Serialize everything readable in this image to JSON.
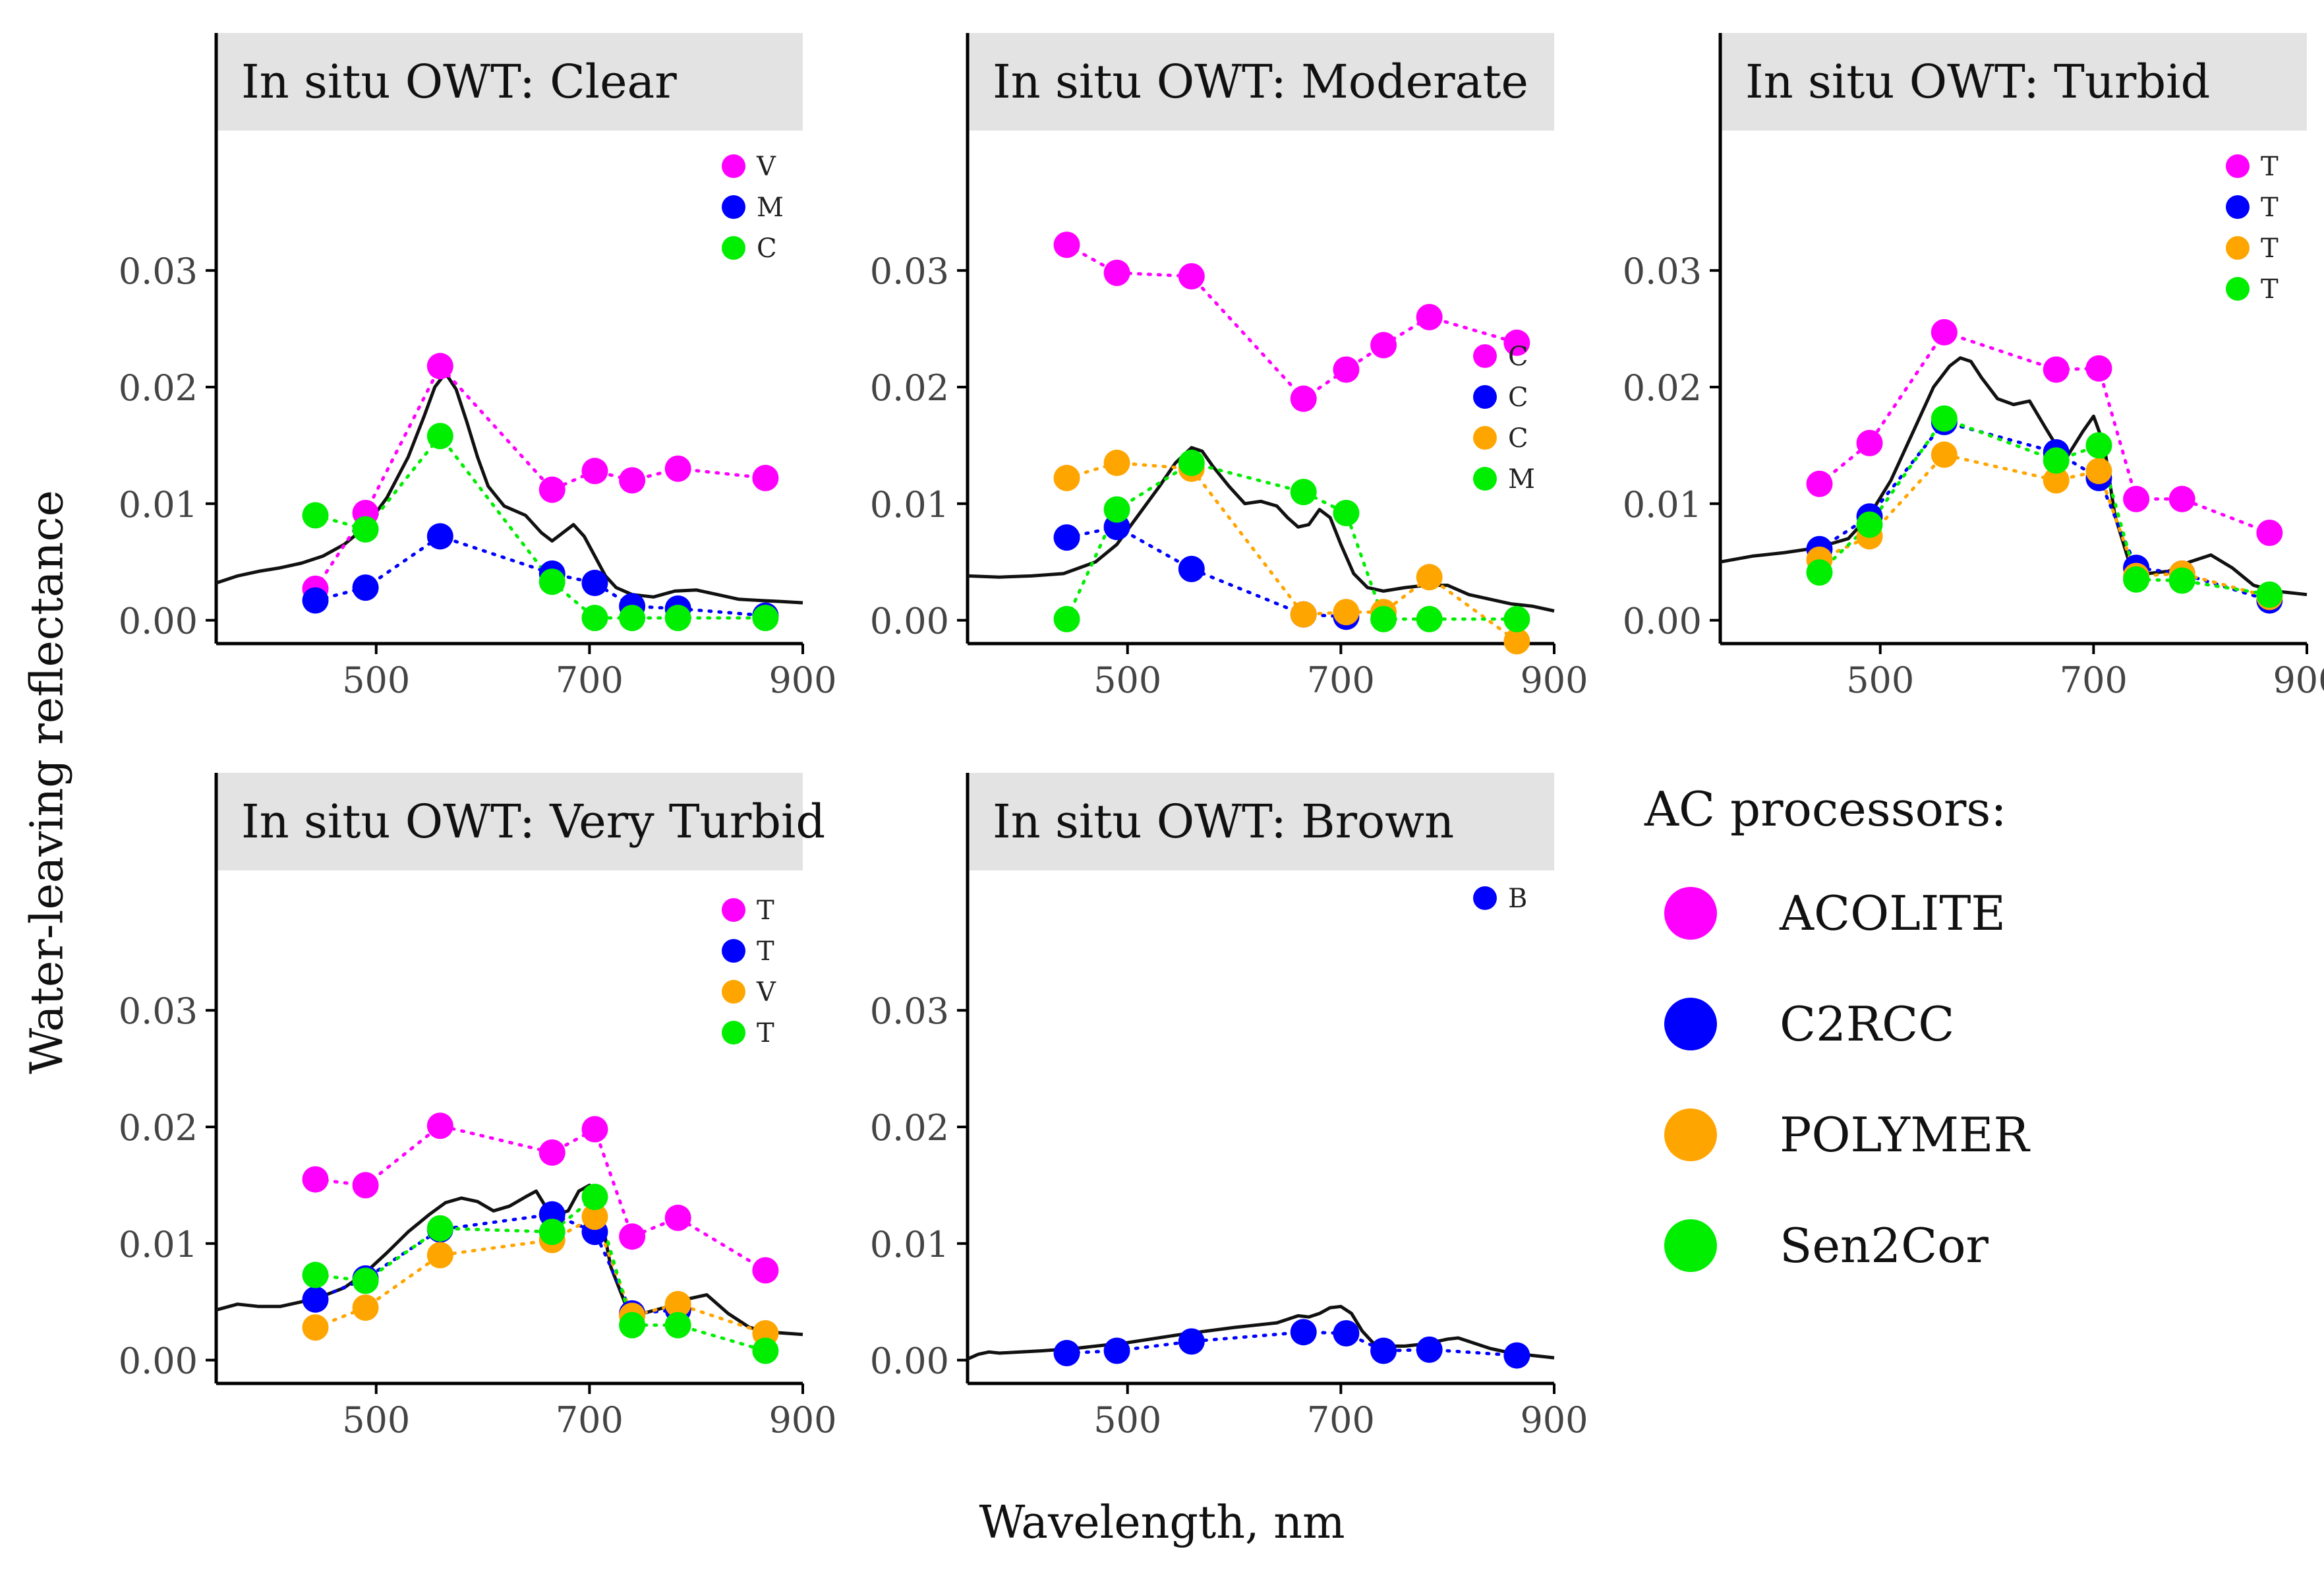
{
  "figure": {
    "x_axis_title": "Wavelength, nm",
    "y_axis_title": "Water-leaving reflectance",
    "legend_title": "AC processors:"
  },
  "colors": {
    "ACOLITE": "#ff00ff",
    "C2RCC": "#0000ff",
    "POLYMER": "#ffa500",
    "Sen2Cor": "#00ee00",
    "in_situ": "#111111",
    "strip": "#e3e3e3"
  },
  "legend": [
    {
      "label": "ACOLITE",
      "color": "#ff00ff"
    },
    {
      "label": "C2RCC",
      "color": "#0000ff"
    },
    {
      "label": "POLYMER",
      "color": "#ffa500"
    },
    {
      "label": "Sen2Cor",
      "color": "#00ee00"
    }
  ],
  "chart_data": {
    "type": "scatter",
    "description_axis": "shared",
    "xlim": [
      350,
      900
    ],
    "ylim": [
      -0.002,
      0.042
    ],
    "x_ticks": [
      500,
      700,
      900
    ],
    "y_ticks": [
      0.0,
      0.01,
      0.02,
      0.03
    ],
    "y_tick_labels": [
      "0.00",
      "0.01",
      "0.02",
      "0.03"
    ],
    "wavelengths": [
      443,
      490,
      560,
      665,
      705,
      740,
      783,
      865
    ],
    "panels": [
      {
        "title": "In situ OWT: Clear",
        "in_situ": {
          "x": [
            350,
            370,
            390,
            410,
            430,
            450,
            470,
            490,
            510,
            530,
            545,
            555,
            565,
            575,
            585,
            595,
            605,
            620,
            640,
            655,
            665,
            675,
            685,
            695,
            705,
            715,
            725,
            740,
            760,
            780,
            800,
            820,
            840,
            860,
            880,
            900
          ],
          "y": [
            0.0032,
            0.0038,
            0.0042,
            0.0045,
            0.0049,
            0.0055,
            0.0065,
            0.008,
            0.0105,
            0.014,
            0.0175,
            0.02,
            0.0212,
            0.0198,
            0.017,
            0.014,
            0.0115,
            0.0098,
            0.009,
            0.0075,
            0.0068,
            0.0075,
            0.0082,
            0.0072,
            0.0055,
            0.0038,
            0.0028,
            0.0022,
            0.002,
            0.0025,
            0.0026,
            0.0022,
            0.0018,
            0.0017,
            0.0016,
            0.0015
          ]
        },
        "series": [
          {
            "name": "ACOLITE",
            "values": [
              0.0027,
              0.0092,
              0.0218,
              0.0112,
              0.0128,
              0.012,
              0.013,
              0.0122
            ]
          },
          {
            "name": "C2RCC",
            "values": [
              0.0017,
              0.0028,
              0.0072,
              0.004,
              0.0032,
              0.0012,
              0.001,
              0.0004
            ]
          },
          {
            "name": "Sen2Cor",
            "values": [
              0.009,
              0.0078,
              0.0158,
              0.0033,
              0.0002,
              0.0002,
              0.0002,
              0.0002
            ]
          }
        ],
        "point_labels": [
          {
            "series": "ACOLITE",
            "text": "V"
          },
          {
            "series": "C2RCC",
            "text": "M"
          },
          {
            "series": "Sen2Cor",
            "text": "C"
          }
        ]
      },
      {
        "title": "In situ OWT: Moderate",
        "in_situ": {
          "x": [
            350,
            380,
            410,
            440,
            470,
            490,
            510,
            530,
            545,
            560,
            570,
            580,
            595,
            610,
            625,
            640,
            650,
            660,
            670,
            680,
            690,
            700,
            712,
            725,
            740,
            760,
            780,
            800,
            820,
            840,
            860,
            880,
            900
          ],
          "y": [
            0.0038,
            0.0037,
            0.0038,
            0.004,
            0.005,
            0.0065,
            0.009,
            0.0115,
            0.0135,
            0.0148,
            0.0145,
            0.0132,
            0.0115,
            0.01,
            0.0102,
            0.0098,
            0.0088,
            0.008,
            0.0082,
            0.0095,
            0.0088,
            0.0065,
            0.004,
            0.0028,
            0.0025,
            0.0028,
            0.003,
            0.003,
            0.0022,
            0.0018,
            0.0014,
            0.0012,
            0.0008
          ]
        },
        "series": [
          {
            "name": "ACOLITE",
            "values": [
              0.0322,
              0.0298,
              0.0295,
              0.019,
              0.0215,
              0.0236,
              0.026,
              0.0238
            ]
          },
          {
            "name": "C2RCC",
            "values": [
              0.0071,
              0.008,
              0.0044,
              0.0005,
              0.0003,
              null,
              null,
              null
            ]
          },
          {
            "name": "POLYMER",
            "values": [
              0.0122,
              0.0135,
              0.013,
              0.0005,
              0.0007,
              0.0007,
              0.0037,
              -0.0018
            ]
          },
          {
            "name": "Sen2Cor",
            "values": [
              0.0001,
              0.0095,
              0.0135,
              0.011,
              0.0092,
              0.0001,
              0.0001,
              0.0001
            ]
          }
        ],
        "point_labels": [
          {
            "series": "ACOLITE",
            "text": "C"
          },
          {
            "series": "C2RCC",
            "text": "C"
          },
          {
            "series": "POLYMER",
            "text": "C"
          },
          {
            "series": "Sen2Cor",
            "text": "M"
          }
        ]
      },
      {
        "title": "In situ OWT: Turbid",
        "in_situ": {
          "x": [
            350,
            380,
            410,
            440,
            470,
            490,
            510,
            530,
            550,
            565,
            575,
            585,
            595,
            610,
            625,
            640,
            655,
            665,
            675,
            690,
            700,
            710,
            720,
            735,
            750,
            770,
            790,
            810,
            830,
            850,
            870,
            900
          ],
          "y": [
            0.005,
            0.0055,
            0.0058,
            0.0062,
            0.007,
            0.009,
            0.012,
            0.016,
            0.02,
            0.0218,
            0.0225,
            0.0222,
            0.0208,
            0.019,
            0.0185,
            0.0188,
            0.0165,
            0.015,
            0.014,
            0.0162,
            0.0175,
            0.015,
            0.009,
            0.0045,
            0.004,
            0.0042,
            0.005,
            0.0056,
            0.0045,
            0.003,
            0.0025,
            0.0022
          ]
        },
        "series": [
          {
            "name": "ACOLITE",
            "values": [
              0.0117,
              0.0152,
              0.0247,
              0.0215,
              0.0216,
              0.0104,
              0.0104,
              0.0075
            ]
          },
          {
            "name": "C2RCC",
            "values": [
              0.0061,
              0.0089,
              0.017,
              0.0144,
              0.0122,
              0.0045,
              0.004,
              0.0017
            ]
          },
          {
            "name": "POLYMER",
            "values": [
              0.0052,
              0.0072,
              0.0142,
              0.012,
              0.0128,
              0.0038,
              0.004,
              0.002
            ]
          },
          {
            "name": "Sen2Cor",
            "values": [
              0.0041,
              0.0082,
              0.0173,
              0.0137,
              0.015,
              0.0035,
              0.0034,
              0.0022
            ]
          }
        ],
        "point_labels": [
          {
            "series": "ACOLITE",
            "text": "T"
          },
          {
            "series": "C2RCC",
            "text": "T"
          },
          {
            "series": "POLYMER",
            "text": "T"
          },
          {
            "series": "Sen2Cor",
            "text": "T"
          }
        ]
      },
      {
        "title": "In situ OWT: Very Turbid",
        "in_situ": {
          "x": [
            350,
            370,
            390,
            410,
            430,
            450,
            470,
            490,
            510,
            530,
            550,
            565,
            580,
            595,
            610,
            625,
            640,
            650,
            660,
            670,
            680,
            690,
            700,
            710,
            720,
            735,
            750,
            770,
            790,
            810,
            830,
            850,
            870,
            900
          ],
          "y": [
            0.0043,
            0.0048,
            0.0046,
            0.0046,
            0.005,
            0.0055,
            0.0062,
            0.0075,
            0.0092,
            0.011,
            0.0125,
            0.0135,
            0.0139,
            0.0136,
            0.0128,
            0.0132,
            0.014,
            0.0145,
            0.013,
            0.0125,
            0.0128,
            0.0145,
            0.015,
            0.0128,
            0.008,
            0.0045,
            0.004,
            0.0045,
            0.0052,
            0.0056,
            0.004,
            0.0028,
            0.0024,
            0.0022
          ]
        },
        "series": [
          {
            "name": "ACOLITE",
            "values": [
              0.0155,
              0.015,
              0.0201,
              0.0178,
              0.0198,
              0.0106,
              0.0122,
              0.0077
            ]
          },
          {
            "name": "C2RCC",
            "values": [
              0.0052,
              0.007,
              0.0112,
              0.0125,
              0.011,
              0.004,
              0.0043,
              null
            ]
          },
          {
            "name": "POLYMER",
            "values": [
              0.0028,
              0.0045,
              0.009,
              0.0103,
              0.0123,
              0.0038,
              0.0048,
              0.0023
            ]
          },
          {
            "name": "Sen2Cor",
            "values": [
              0.0073,
              0.0068,
              0.0113,
              0.011,
              0.014,
              0.003,
              0.003,
              0.0008
            ]
          }
        ],
        "point_labels": [
          {
            "series": "ACOLITE",
            "text": "T"
          },
          {
            "series": "C2RCC",
            "text": "T"
          },
          {
            "series": "POLYMER",
            "text": "V"
          },
          {
            "series": "Sen2Cor",
            "text": "T"
          }
        ]
      },
      {
        "title": "In situ OWT: Brown",
        "in_situ": {
          "x": [
            350,
            360,
            370,
            380,
            400,
            420,
            450,
            500,
            550,
            600,
            640,
            660,
            670,
            680,
            690,
            700,
            710,
            720,
            730,
            745,
            760,
            780,
            800,
            810,
            820,
            840,
            860,
            880,
            900
          ],
          "y": [
            0.0001,
            0.0005,
            0.0007,
            0.0006,
            0.0007,
            0.0008,
            0.001,
            0.0015,
            0.0022,
            0.0028,
            0.0032,
            0.0038,
            0.0037,
            0.004,
            0.0045,
            0.0046,
            0.004,
            0.0025,
            0.0015,
            0.0012,
            0.0012,
            0.0014,
            0.0018,
            0.0019,
            0.0016,
            0.001,
            0.0006,
            0.0004,
            0.0002
          ]
        },
        "series": [
          {
            "name": "C2RCC",
            "values": [
              0.0006,
              0.0008,
              0.0016,
              0.0024,
              0.0023,
              0.0008,
              0.0009,
              0.0004
            ]
          }
        ],
        "point_labels": [
          {
            "series": "C2RCC",
            "text": "B"
          }
        ]
      }
    ]
  }
}
